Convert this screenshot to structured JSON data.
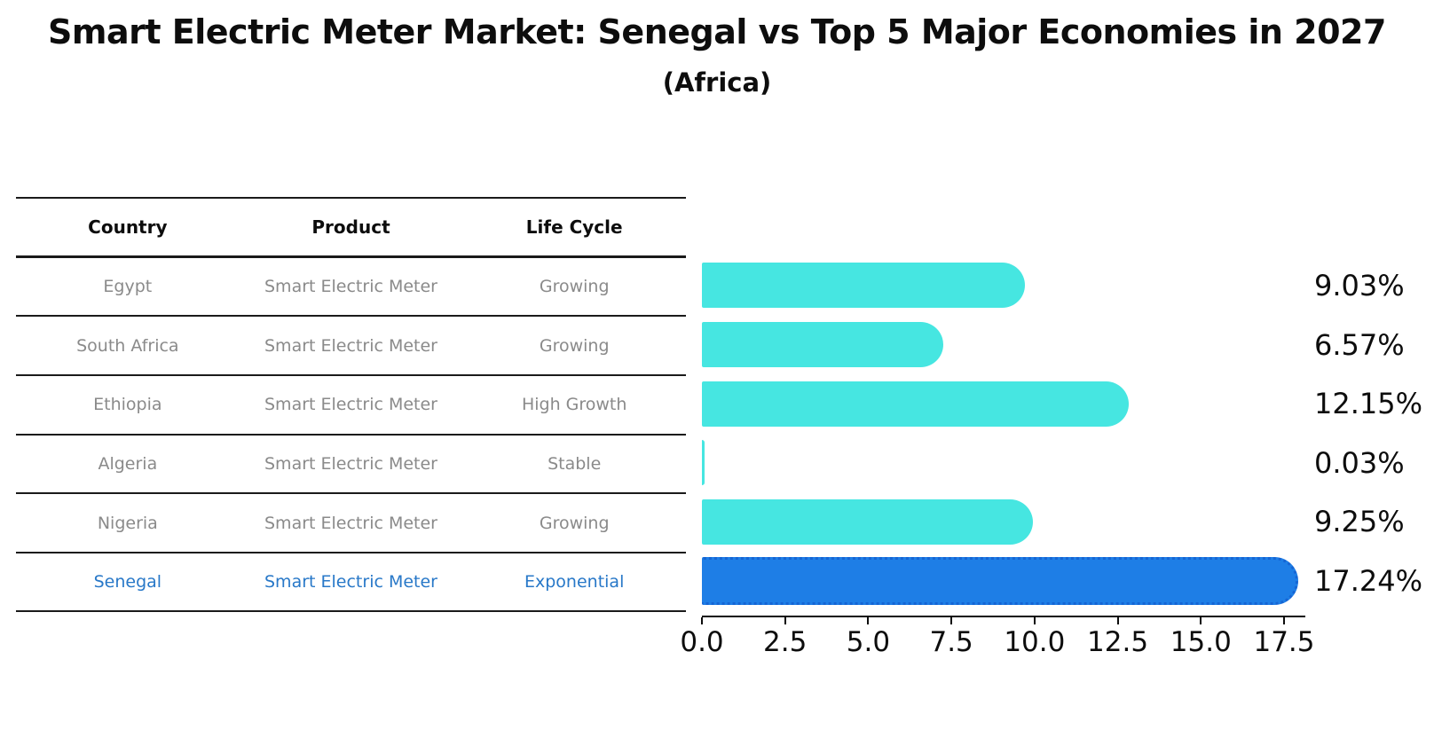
{
  "title": "Smart Electric Meter Market: Senegal vs Top 5 Major Economies in 2027",
  "subtitle": "(Africa)",
  "table": {
    "headers": [
      "Country",
      "Product",
      "Life Cycle"
    ],
    "rows": [
      {
        "country": "Egypt",
        "product": "Smart Electric Meter",
        "life_cycle": "Growing",
        "value_label": "9.03%"
      },
      {
        "country": "South Africa",
        "product": "Smart Electric Meter",
        "life_cycle": "Growing",
        "value_label": "6.57%"
      },
      {
        "country": "Ethiopia",
        "product": "Smart Electric Meter",
        "life_cycle": "High Growth",
        "value_label": "12.15%"
      },
      {
        "country": "Algeria",
        "product": "Smart Electric Meter",
        "life_cycle": "Stable",
        "value_label": "0.03%"
      },
      {
        "country": "Nigeria",
        "product": "Smart Electric Meter",
        "life_cycle": "Growing",
        "value_label": "9.25%"
      },
      {
        "country": "Senegal",
        "product": "Smart Electric Meter",
        "life_cycle": "Exponential",
        "value_label": "17.24%"
      }
    ]
  },
  "chart_data": {
    "type": "bar",
    "orientation": "horizontal",
    "title": "Smart Electric Meter Market: Senegal vs Top 5 Major Economies in 2027 (Africa)",
    "categories": [
      "Egypt",
      "South Africa",
      "Ethiopia",
      "Algeria",
      "Nigeria",
      "Senegal"
    ],
    "values": [
      9.03,
      6.57,
      12.15,
      0.03,
      9.25,
      17.24
    ],
    "value_labels": [
      "9.03%",
      "6.57%",
      "12.15%",
      "0.03%",
      "9.25%",
      "17.24%"
    ],
    "highlight_category": "Senegal",
    "xlim": [
      0,
      17.5
    ],
    "x_ticks": [
      "0.0",
      "2.5",
      "5.0",
      "7.5",
      "10.0",
      "12.5",
      "15.0",
      "17.5"
    ],
    "grid": false,
    "legend": false,
    "colors": {
      "bar": "#46e6e1",
      "highlight_bar": "#1e7ee6",
      "highlight_border": "#1565d4",
      "highlight_text": "#2878c8",
      "row_text": "#8a8a8a",
      "axis_text": "#0d0d0d"
    }
  }
}
